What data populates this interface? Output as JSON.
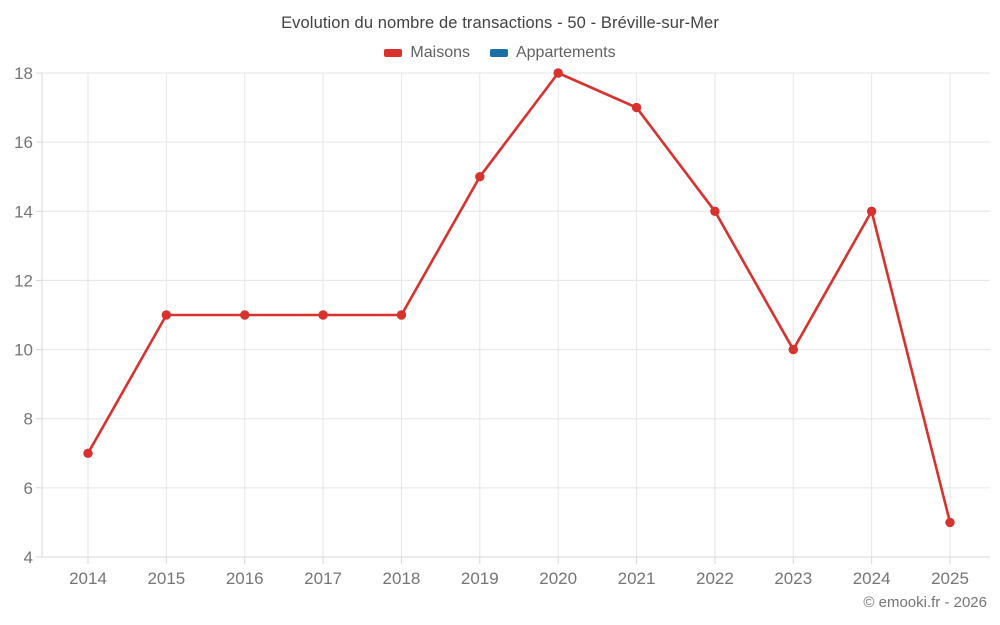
{
  "header": {
    "title": "Evolution du nombre de transactions - 50 - Bréville-sur-Mer"
  },
  "legend": {
    "position": "top",
    "items": [
      {
        "label": "Maisons",
        "color": "#d9322e"
      },
      {
        "label": "Appartements",
        "color": "#1a6fa5"
      }
    ]
  },
  "chart_data": {
    "type": "line",
    "title": "Evolution du nombre de transactions - 50 - Bréville-sur-Mer",
    "x": [
      "2014",
      "2015",
      "2016",
      "2017",
      "2018",
      "2019",
      "2020",
      "2021",
      "2022",
      "2023",
      "2024",
      "2025"
    ],
    "series": [
      {
        "name": "Maisons",
        "color": "#d9322e",
        "values": [
          7,
          11,
          11,
          11,
          11,
          15,
          18,
          17,
          14,
          10,
          14,
          5
        ]
      },
      {
        "name": "Appartements",
        "color": "#1a6fa5",
        "values": []
      }
    ],
    "xlabel": "",
    "ylabel": "",
    "ylim": [
      4,
      18
    ],
    "yticks": [
      4,
      6,
      8,
      10,
      12,
      14,
      16,
      18
    ],
    "grid": true,
    "legend_position": "top",
    "point_radius": 4.7,
    "line_width": 2.6
  },
  "footer": {
    "credit": "© emooki.fr - 2026"
  },
  "colors": {
    "background": "#ffffff",
    "grid": "#e6e6e6",
    "axis": "#d9d9d9",
    "tick_label": "#757575",
    "title_text": "#424242",
    "legend_text": "#616161",
    "footer_text": "#757575"
  }
}
